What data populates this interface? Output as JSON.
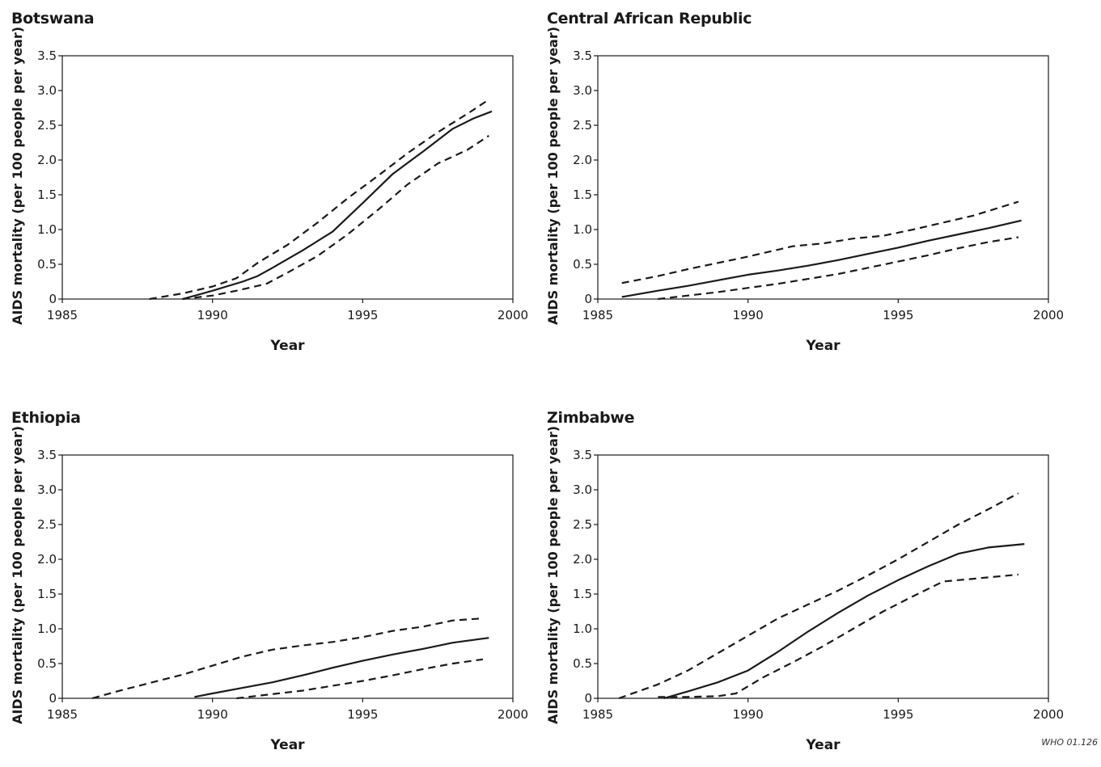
{
  "credit": "WHO 01.126",
  "chart_data": [
    {
      "type": "line",
      "title": "Botswana",
      "xlabel": "Year",
      "ylabel": "AIDS mortality (per 100 people per year)",
      "xlim": [
        1985,
        2000
      ],
      "ylim": [
        0,
        3.5
      ],
      "xticks": [
        "1985",
        "1990",
        "1995",
        "2000"
      ],
      "yticks": [
        "0",
        "0.5",
        "1.0",
        "1.5",
        "2.0",
        "2.5",
        "3.0",
        "3.5"
      ],
      "series": [
        {
          "style": "solid",
          "x": [
            1989.0,
            1990.0,
            1991.0,
            1991.5,
            1992.0,
            1993.0,
            1994.0,
            1995.0,
            1996.0,
            1997.0,
            1998.0,
            1998.7,
            1999.3
          ],
          "y": [
            0,
            0.12,
            0.25,
            0.33,
            0.45,
            0.7,
            0.97,
            1.38,
            1.8,
            2.12,
            2.45,
            2.6,
            2.7
          ]
        },
        {
          "style": "dashed",
          "x": [
            1987.9,
            1989.0,
            1990.0,
            1990.8,
            1991.5,
            1992.5,
            1993.5,
            1994.5,
            1995.5,
            1996.5,
            1997.5,
            1998.5,
            1999.2
          ],
          "y": [
            0,
            0.08,
            0.18,
            0.3,
            0.52,
            0.78,
            1.1,
            1.45,
            1.77,
            2.1,
            2.4,
            2.67,
            2.87
          ]
        },
        {
          "style": "dashed",
          "x": [
            1989.0,
            1990.0,
            1990.8,
            1991.8,
            1992.5,
            1993.5,
            1994.5,
            1995.5,
            1996.5,
            1997.5,
            1998.5,
            1999.2
          ],
          "y": [
            0,
            0.05,
            0.12,
            0.22,
            0.38,
            0.62,
            0.93,
            1.28,
            1.65,
            1.95,
            2.15,
            2.35
          ]
        }
      ]
    },
    {
      "type": "line",
      "title": "Central African Republic",
      "xlabel": "Year",
      "ylabel": "AIDS mortality (per 100 people per year)",
      "xlim": [
        1985,
        2000
      ],
      "ylim": [
        0,
        3.5
      ],
      "xticks": [
        "1985",
        "1990",
        "1995",
        "2000"
      ],
      "yticks": [
        "0",
        "0.5",
        "1.0",
        "1.5",
        "2.0",
        "2.5",
        "3.0",
        "3.5"
      ],
      "series": [
        {
          "style": "solid",
          "x": [
            1985.8,
            1987.0,
            1988.0,
            1989.0,
            1990.0,
            1991.0,
            1992.0,
            1993.0,
            1994.0,
            1995.0,
            1996.0,
            1997.0,
            1998.0,
            1999.1
          ],
          "y": [
            0.03,
            0.12,
            0.19,
            0.27,
            0.35,
            0.41,
            0.48,
            0.56,
            0.65,
            0.74,
            0.84,
            0.93,
            1.02,
            1.13
          ]
        },
        {
          "style": "dashed",
          "x": [
            1985.8,
            1987.0,
            1988.0,
            1989.0,
            1990.0,
            1991.0,
            1991.5,
            1992.5,
            1993.5,
            1994.5,
            1995.5,
            1996.5,
            1997.5,
            1999.0
          ],
          "y": [
            0.23,
            0.33,
            0.43,
            0.52,
            0.61,
            0.71,
            0.76,
            0.8,
            0.87,
            0.91,
            1.0,
            1.1,
            1.2,
            1.4
          ]
        },
        {
          "style": "dashed",
          "x": [
            1987.0,
            1988.0,
            1989.0,
            1990.0,
            1991.0,
            1992.0,
            1993.0,
            1994.0,
            1995.0,
            1996.0,
            1997.0,
            1998.0,
            1999.0
          ],
          "y": [
            0,
            0.05,
            0.1,
            0.16,
            0.22,
            0.29,
            0.36,
            0.45,
            0.54,
            0.63,
            0.73,
            0.82,
            0.89
          ]
        }
      ]
    },
    {
      "type": "line",
      "title": "Ethiopia",
      "xlabel": "Year",
      "ylabel": "AIDS mortality (per 100 people per year)",
      "xlim": [
        1985,
        2000
      ],
      "ylim": [
        0,
        3.5
      ],
      "xticks": [
        "1985",
        "1990",
        "1995",
        "2000"
      ],
      "yticks": [
        "0",
        "0.5",
        "1.0",
        "1.5",
        "2.0",
        "2.5",
        "3.0",
        "3.5"
      ],
      "series": [
        {
          "style": "solid",
          "x": [
            1989.4,
            1990.0,
            1991.0,
            1992.0,
            1993.0,
            1994.0,
            1995.0,
            1996.0,
            1997.0,
            1998.0,
            1999.2
          ],
          "y": [
            0.02,
            0.07,
            0.15,
            0.23,
            0.33,
            0.44,
            0.54,
            0.63,
            0.71,
            0.8,
            0.87
          ]
        },
        {
          "style": "dashed",
          "x": [
            1986.0,
            1987.0,
            1988.0,
            1989.0,
            1990.0,
            1991.0,
            1992.0,
            1993.0,
            1994.0,
            1995.0,
            1996.0,
            1997.0,
            1998.0,
            1999.0
          ],
          "y": [
            0,
            0.12,
            0.23,
            0.34,
            0.47,
            0.6,
            0.7,
            0.76,
            0.81,
            0.88,
            0.97,
            1.03,
            1.12,
            1.15
          ]
        },
        {
          "style": "dashed",
          "x": [
            1990.8,
            1992.0,
            1993.0,
            1994.0,
            1995.0,
            1996.0,
            1997.0,
            1998.0,
            1999.0
          ],
          "y": [
            0,
            0.06,
            0.11,
            0.18,
            0.25,
            0.33,
            0.42,
            0.5,
            0.56
          ]
        }
      ]
    },
    {
      "type": "line",
      "title": "Zimbabwe",
      "xlabel": "Year",
      "ylabel": "AIDS mortality (per 100 people per year)",
      "xlim": [
        1985,
        2000
      ],
      "ylim": [
        0,
        3.5
      ],
      "xticks": [
        "1985",
        "1990",
        "1995",
        "2000"
      ],
      "yticks": [
        "0",
        "0.5",
        "1.0",
        "1.5",
        "2.0",
        "2.5",
        "3.0",
        "3.5"
      ],
      "series": [
        {
          "style": "solid",
          "x": [
            1987.2,
            1988.0,
            1989.0,
            1990.0,
            1991.0,
            1992.0,
            1993.0,
            1994.0,
            1995.0,
            1996.0,
            1997.0,
            1998.0,
            1999.2
          ],
          "y": [
            0,
            0.1,
            0.23,
            0.4,
            0.67,
            0.96,
            1.23,
            1.48,
            1.7,
            1.9,
            2.08,
            2.17,
            2.22
          ]
        },
        {
          "style": "dashed",
          "x": [
            1985.7,
            1987.0,
            1988.0,
            1989.0,
            1990.0,
            1991.0,
            1992.0,
            1993.0,
            1994.0,
            1995.0,
            1996.0,
            1997.0,
            1998.0,
            1999.0
          ],
          "y": [
            0,
            0.2,
            0.4,
            0.65,
            0.9,
            1.15,
            1.35,
            1.55,
            1.77,
            2.0,
            2.25,
            2.5,
            2.72,
            2.95
          ]
        },
        {
          "style": "dashed",
          "x": [
            1987.0,
            1988.0,
            1989.0,
            1989.6,
            1990.5,
            1991.5,
            1992.5,
            1993.5,
            1994.5,
            1995.5,
            1996.5,
            1997.5,
            1999.0
          ],
          "y": [
            0.02,
            0.02,
            0.03,
            0.07,
            0.3,
            0.52,
            0.75,
            1.0,
            1.25,
            1.47,
            1.68,
            1.72,
            1.78
          ]
        }
      ]
    }
  ]
}
